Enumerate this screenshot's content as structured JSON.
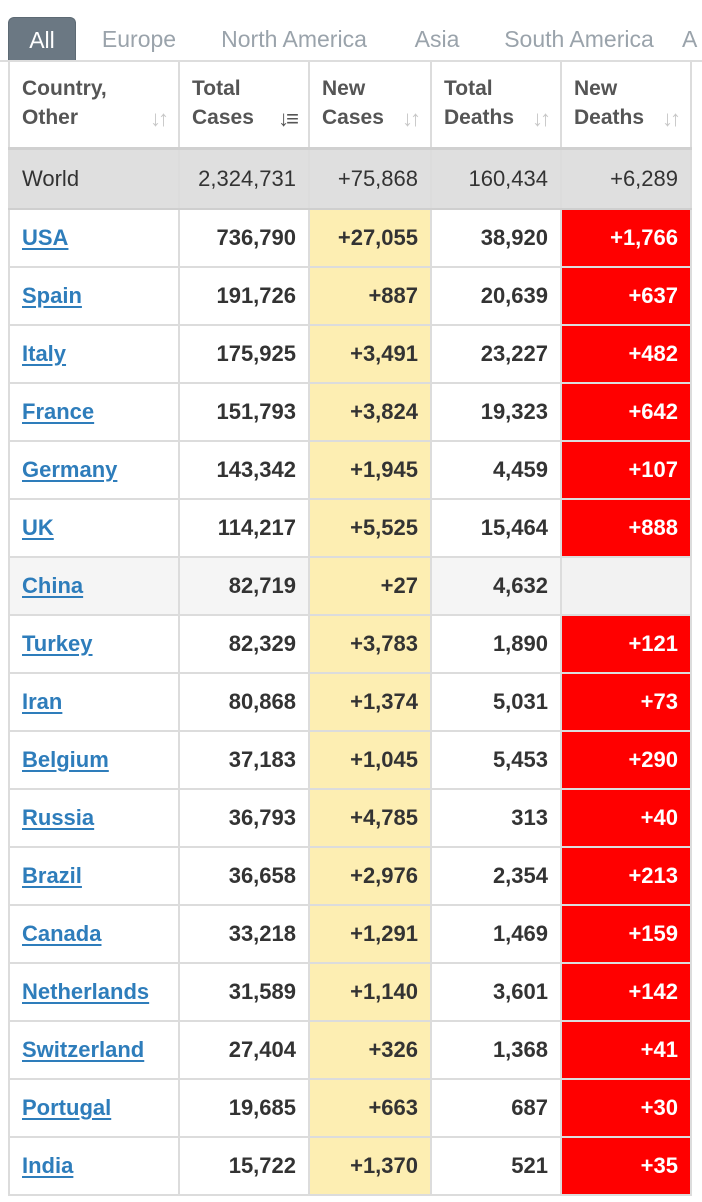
{
  "tabs": [
    {
      "label": "All",
      "active": true
    },
    {
      "label": "Europe",
      "active": false
    },
    {
      "label": "North America",
      "active": false
    },
    {
      "label": "Asia",
      "active": false
    },
    {
      "label": "South America",
      "active": false
    },
    {
      "label": "A",
      "active": false
    }
  ],
  "table": {
    "headers": [
      {
        "line1": "Country,",
        "line2": "Other",
        "sort_icon": "sort-icon"
      },
      {
        "line1": "Total",
        "line2": "Cases",
        "sort_icon": "sort-descending-icon"
      },
      {
        "line1": "New",
        "line2": "Cases",
        "sort_icon": "sort-icon"
      },
      {
        "line1": "Total",
        "line2": "Deaths",
        "sort_icon": "sort-icon"
      },
      {
        "line1": "New",
        "line2": "Deaths",
        "sort_icon": "sort-icon"
      }
    ],
    "world": {
      "name": "World",
      "total_cases": "2,324,731",
      "new_cases": "+75,868",
      "total_deaths": "160,434",
      "new_deaths": "+6,289"
    },
    "rows": [
      {
        "country": "USA",
        "total_cases": "736,790",
        "new_cases": "+27,055",
        "total_deaths": "38,920",
        "new_deaths": "+1,766"
      },
      {
        "country": "Spain",
        "total_cases": "191,726",
        "new_cases": "+887",
        "total_deaths": "20,639",
        "new_deaths": "+637"
      },
      {
        "country": "Italy",
        "total_cases": "175,925",
        "new_cases": "+3,491",
        "total_deaths": "23,227",
        "new_deaths": "+482"
      },
      {
        "country": "France",
        "total_cases": "151,793",
        "new_cases": "+3,824",
        "total_deaths": "19,323",
        "new_deaths": "+642"
      },
      {
        "country": "Germany",
        "total_cases": "143,342",
        "new_cases": "+1,945",
        "total_deaths": "4,459",
        "new_deaths": "+107"
      },
      {
        "country": "UK",
        "total_cases": "114,217",
        "new_cases": "+5,525",
        "total_deaths": "15,464",
        "new_deaths": "+888"
      },
      {
        "country": "China",
        "total_cases": "82,719",
        "new_cases": "+27",
        "total_deaths": "4,632",
        "new_deaths": ""
      },
      {
        "country": "Turkey",
        "total_cases": "82,329",
        "new_cases": "+3,783",
        "total_deaths": "1,890",
        "new_deaths": "+121"
      },
      {
        "country": "Iran",
        "total_cases": "80,868",
        "new_cases": "+1,374",
        "total_deaths": "5,031",
        "new_deaths": "+73"
      },
      {
        "country": "Belgium",
        "total_cases": "37,183",
        "new_cases": "+1,045",
        "total_deaths": "5,453",
        "new_deaths": "+290"
      },
      {
        "country": "Russia",
        "total_cases": "36,793",
        "new_cases": "+4,785",
        "total_deaths": "313",
        "new_deaths": "+40"
      },
      {
        "country": "Brazil",
        "total_cases": "36,658",
        "new_cases": "+2,976",
        "total_deaths": "2,354",
        "new_deaths": "+213"
      },
      {
        "country": "Canada",
        "total_cases": "33,218",
        "new_cases": "+1,291",
        "total_deaths": "1,469",
        "new_deaths": "+159"
      },
      {
        "country": "Netherlands",
        "total_cases": "31,589",
        "new_cases": "+1,140",
        "total_deaths": "3,601",
        "new_deaths": "+142"
      },
      {
        "country": "Switzerland",
        "total_cases": "27,404",
        "new_cases": "+326",
        "total_deaths": "1,368",
        "new_deaths": "+41"
      },
      {
        "country": "Portugal",
        "total_cases": "19,685",
        "new_cases": "+663",
        "total_deaths": "687",
        "new_deaths": "+30"
      },
      {
        "country": "India",
        "total_cases": "15,722",
        "new_cases": "+1,370",
        "total_deaths": "521",
        "new_deaths": "+35"
      }
    ]
  },
  "colors": {
    "active_tab": "#6b7883",
    "link": "#2e7dbb",
    "new_cases_bg": "#fdeeb2",
    "new_deaths_bg": "#ff0000",
    "world_row_bg": "#dfdfdf"
  }
}
